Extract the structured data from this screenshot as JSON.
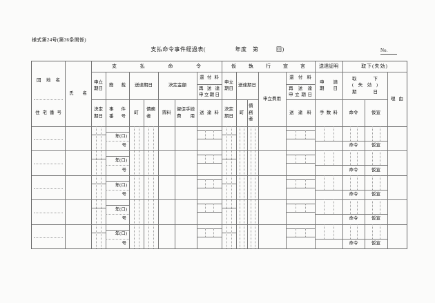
{
  "page": {
    "form_number": "様式第24号(第36条関係)",
    "title": "支払命令事件経過表(　　　　　年度　第　　　回)",
    "no_label": "No."
  },
  "header": {
    "estate_name": "団地名",
    "house_number": "住宅番号",
    "name": "氏名",
    "group_payment": "支払命令",
    "group_provisional": "仮執行宣言",
    "group_certificate": "送達証明",
    "group_withdrawal": "取下(失効)",
    "payment": {
      "filing_date": "申立\n期日",
      "decision_date": "決定\n期日",
      "summary_court": "簡裁",
      "case_number": "事件\n番号",
      "service_date": "送達期日",
      "town": "町",
      "debtor": "債務\n者",
      "decision_amount": "決定金額",
      "rent": "賃料",
      "demand_cost": "督促手続\n費用",
      "refund_fee": "還付料",
      "reservice_date": "再送達\n申立期日",
      "service_fee": "送達料"
    },
    "provisional": {
      "filing_date": "申立\n期日",
      "decision_date": "決定\n期日",
      "service_date": "送達期日",
      "town": "町",
      "debtor": "債務\n者",
      "filing_cost": "申立費用",
      "refund_fee": "還付料",
      "reservice_date": "再送達\n申立期日",
      "service_fee": "送達料"
    },
    "certificate": {
      "application_date": "申請\n期日",
      "fee": "手数料"
    },
    "withdrawal": {
      "date": "取下\n(失効)\n期日",
      "order": "命令",
      "provisional": "仮宣",
      "reason": "理由"
    }
  },
  "rows": [
    {
      "case_year": "年(ロ)",
      "case_number": "号",
      "order": "命令",
      "provisional": "仮宣"
    },
    {
      "case_year": "年(ロ)",
      "case_number": "号",
      "order": "命令",
      "provisional": "仮宣"
    },
    {
      "case_year": "年(ロ)",
      "case_number": "号",
      "order": "命令",
      "provisional": "仮宣"
    },
    {
      "case_year": "年(ロ)",
      "case_number": "号",
      "order": "命令",
      "provisional": "仮宣"
    },
    {
      "case_year": "年(ロ)",
      "case_number": "号",
      "order": "命令",
      "provisional": "仮宣"
    }
  ]
}
